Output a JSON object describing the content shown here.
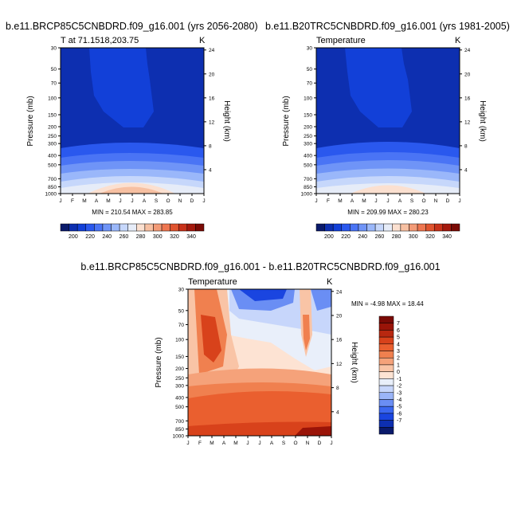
{
  "colors": {
    "abs_scale": [
      "#0a1a6b",
      "#0d2fb0",
      "#1240d8",
      "#2a58ee",
      "#4a74f5",
      "#6f94f7",
      "#9ab7fa",
      "#c6d7fb",
      "#e6ecf8",
      "#fbe0d0",
      "#f7c0a2",
      "#f39b77",
      "#ee7650",
      "#e0542f",
      "#c8321a",
      "#a4190d",
      "#7a0a05"
    ],
    "diff_scale": [
      "#0a1a6b",
      "#0d2fb0",
      "#1a45e0",
      "#3b67f0",
      "#6a8ef4",
      "#9bb5f8",
      "#c7d6fb",
      "#e9effa",
      "#fde3d3",
      "#f9c4a6",
      "#f5a27a",
      "#f0804f",
      "#ea5f2f",
      "#d8421b",
      "#b82810",
      "#9a1408",
      "#7a0a05"
    ]
  },
  "months": [
    "J",
    "F",
    "M",
    "A",
    "M",
    "J",
    "J",
    "A",
    "S",
    "O",
    "N",
    "D",
    "J"
  ],
  "pressure_ticks": [
    "30",
    "50",
    "70",
    "100",
    "150",
    "200",
    "250",
    "300",
    "400",
    "500",
    "700",
    "850",
    "1000"
  ],
  "height_ticks": [
    "24",
    "20",
    "16",
    "12",
    "8",
    "4"
  ],
  "axis": {
    "ylabel": "Pressure (mb)",
    "y2label": "Height (km)",
    "unit": "K"
  },
  "chart_data": [
    {
      "type": "heatmap",
      "title": "b.e11.BRCP85C5CNBDRD.f09_g16.001 (yrs 2056-2080)",
      "subtitle": "T at 71.1518,203.75",
      "stats": "MIN = 210.54 MAX = 283.85",
      "min": 210.54,
      "max": 283.85,
      "colorbar_labels": [
        "200",
        "220",
        "240",
        "260",
        "280",
        "300",
        "320",
        "340"
      ]
    },
    {
      "type": "heatmap",
      "title": "b.e11.B20TRC5CNBDRD.f09_g16.001 (yrs 1981-2005)",
      "subtitle": "Temperature",
      "stats": "MIN = 209.99 MAX = 280.23",
      "min": 209.99,
      "max": 280.23,
      "colorbar_labels": [
        "200",
        "220",
        "240",
        "260",
        "280",
        "300",
        "320",
        "340"
      ]
    },
    {
      "type": "heatmap",
      "title": "b.e11.BRCP85C5CNBDRD.f09_g16.001 - b.e11.B20TRC5CNBDRD.f09_g16.001",
      "subtitle": "Temperature",
      "stats": "MIN =  -4.98 MAX =  18.44",
      "min": -4.98,
      "max": 18.44,
      "colorbar_labels": [
        "7",
        "6",
        "5",
        "4",
        "3",
        "2",
        "1",
        "0",
        "-1",
        "-2",
        "-3",
        "-4",
        "-5",
        "-6",
        "-7"
      ]
    }
  ]
}
